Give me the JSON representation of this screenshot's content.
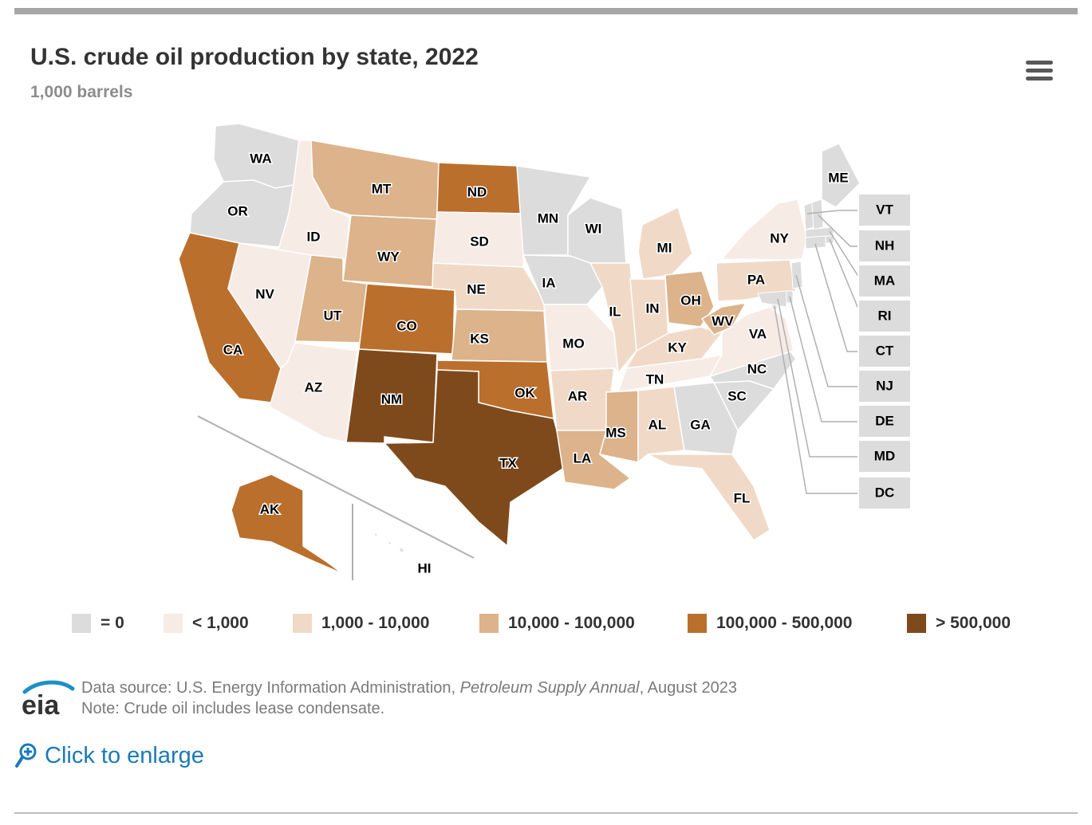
{
  "header": {
    "title": "U.S. crude oil production by state, 2022",
    "subtitle": "1,000 barrels",
    "menu_icon": "hamburger-menu-icon"
  },
  "colors": {
    "zero": "#dcdcdc",
    "lt_1000": "#f7ebe5",
    "1000_10000": "#f0dac7",
    "10000_100000": "#dcb38a",
    "100000_500000": "#bb6f2c",
    "gt_500000": "#7f4a1b",
    "border": "#ffffff",
    "label": "#000000"
  },
  "legend": [
    {
      "label": "= 0",
      "class": "zero"
    },
    {
      "label": "< 1,000",
      "class": "lt_1000"
    },
    {
      "label": "1,000 - 10,000",
      "class": "1000_10000"
    },
    {
      "label": "10,000 - 100,000",
      "class": "10000_100000"
    },
    {
      "label": "100,000 - 500,000",
      "class": "100000_500000"
    },
    {
      "label": "> 500,000",
      "class": "gt_500000"
    }
  ],
  "states": [
    {
      "abbr": "WA",
      "class": "zero"
    },
    {
      "abbr": "OR",
      "class": "zero"
    },
    {
      "abbr": "CA",
      "class": "100000_500000"
    },
    {
      "abbr": "ID",
      "class": "lt_1000"
    },
    {
      "abbr": "NV",
      "class": "lt_1000"
    },
    {
      "abbr": "AZ",
      "class": "lt_1000"
    },
    {
      "abbr": "MT",
      "class": "10000_100000"
    },
    {
      "abbr": "WY",
      "class": "10000_100000"
    },
    {
      "abbr": "UT",
      "class": "10000_100000"
    },
    {
      "abbr": "CO",
      "class": "100000_500000"
    },
    {
      "abbr": "NM",
      "class": "gt_500000"
    },
    {
      "abbr": "ND",
      "class": "100000_500000"
    },
    {
      "abbr": "SD",
      "class": "lt_1000"
    },
    {
      "abbr": "NE",
      "class": "1000_10000"
    },
    {
      "abbr": "KS",
      "class": "10000_100000"
    },
    {
      "abbr": "OK",
      "class": "100000_500000"
    },
    {
      "abbr": "TX",
      "class": "gt_500000"
    },
    {
      "abbr": "MN",
      "class": "zero"
    },
    {
      "abbr": "IA",
      "class": "zero"
    },
    {
      "abbr": "MO",
      "class": "lt_1000"
    },
    {
      "abbr": "AR",
      "class": "1000_10000"
    },
    {
      "abbr": "LA",
      "class": "10000_100000"
    },
    {
      "abbr": "WI",
      "class": "zero"
    },
    {
      "abbr": "IL",
      "class": "1000_10000"
    },
    {
      "abbr": "MI",
      "class": "1000_10000"
    },
    {
      "abbr": "IN",
      "class": "1000_10000"
    },
    {
      "abbr": "OH",
      "class": "10000_100000"
    },
    {
      "abbr": "KY",
      "class": "1000_10000"
    },
    {
      "abbr": "TN",
      "class": "lt_1000"
    },
    {
      "abbr": "MS",
      "class": "10000_100000"
    },
    {
      "abbr": "AL",
      "class": "1000_10000"
    },
    {
      "abbr": "GA",
      "class": "zero"
    },
    {
      "abbr": "FL",
      "class": "1000_10000"
    },
    {
      "abbr": "SC",
      "class": "zero"
    },
    {
      "abbr": "NC",
      "class": "zero"
    },
    {
      "abbr": "VA",
      "class": "lt_1000"
    },
    {
      "abbr": "WV",
      "class": "10000_100000"
    },
    {
      "abbr": "PA",
      "class": "1000_10000"
    },
    {
      "abbr": "NY",
      "class": "lt_1000"
    },
    {
      "abbr": "ME",
      "class": "zero"
    },
    {
      "abbr": "AK",
      "class": "100000_500000"
    },
    {
      "abbr": "HI",
      "class": "zero"
    }
  ],
  "callouts": [
    {
      "abbr": "VT",
      "class": "zero"
    },
    {
      "abbr": "NH",
      "class": "zero"
    },
    {
      "abbr": "MA",
      "class": "zero"
    },
    {
      "abbr": "RI",
      "class": "zero"
    },
    {
      "abbr": "CT",
      "class": "zero"
    },
    {
      "abbr": "NJ",
      "class": "zero"
    },
    {
      "abbr": "DE",
      "class": "zero"
    },
    {
      "abbr": "MD",
      "class": "zero"
    },
    {
      "abbr": "DC",
      "class": "zero"
    }
  ],
  "footer": {
    "logo_text": "eia",
    "source_prefix": "Data source: U.S. Energy Information Administration, ",
    "source_pub": "Petroleum Supply Annual",
    "source_suffix": ", August 2023",
    "note": "Note: Crude oil includes lease condensate.",
    "enlarge_icon": "zoom-in-icon",
    "enlarge_label": "Click to enlarge"
  }
}
